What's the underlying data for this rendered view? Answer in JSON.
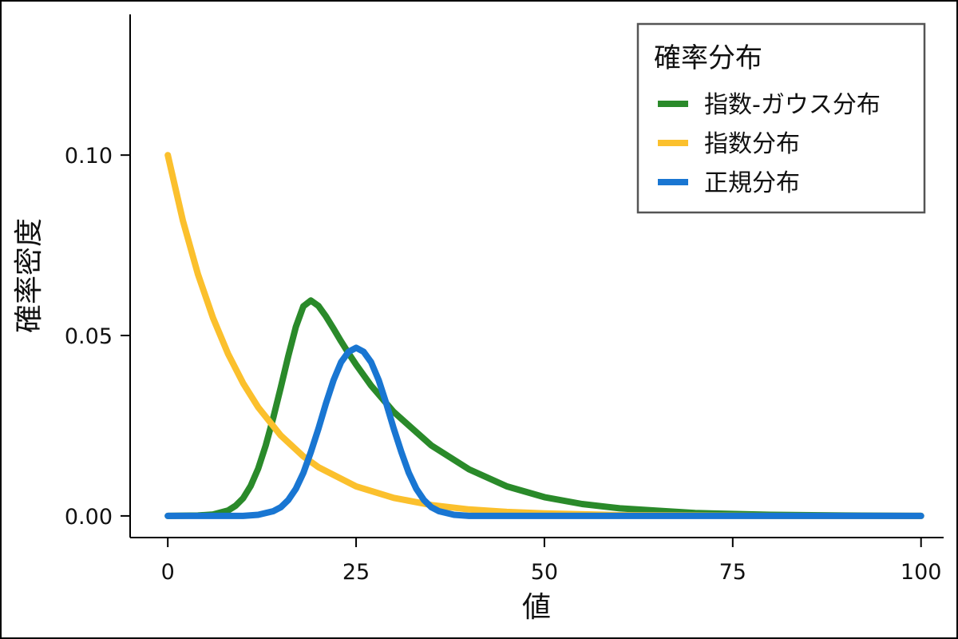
{
  "chart_data": {
    "type": "line",
    "xlabel": "値",
    "ylabel": "確率密度",
    "xlim": [
      -5,
      103
    ],
    "ylim": [
      -0.006,
      0.139
    ],
    "x_ticks": [
      {
        "value": 0,
        "label": "0"
      },
      {
        "value": 25,
        "label": "25"
      },
      {
        "value": 50,
        "label": "50"
      },
      {
        "value": 75,
        "label": "75"
      },
      {
        "value": 100,
        "label": "100"
      }
    ],
    "y_ticks": [
      {
        "value": 0,
        "label": "0.00"
      },
      {
        "value": 0.05,
        "label": "0.05"
      },
      {
        "value": 0.1,
        "label": "0.10"
      }
    ],
    "grid": false,
    "legend": {
      "title": "確率分布",
      "position": "top-right",
      "entries": [
        "指数-ガウス分布",
        "指数分布",
        "正規分布"
      ]
    },
    "series": [
      {
        "name": "指数-ガウス分布",
        "color": "#2a8a2a",
        "x": [
          0,
          4,
          6,
          8,
          9,
          10,
          11,
          12,
          13,
          14,
          15,
          16,
          17,
          18,
          19,
          20,
          21,
          22,
          23,
          24,
          25,
          27,
          30,
          35,
          40,
          45,
          50,
          55,
          60,
          70,
          80,
          90,
          100
        ],
        "y": [
          0.0,
          0.0001,
          0.0004,
          0.0015,
          0.0028,
          0.0049,
          0.0083,
          0.0131,
          0.0195,
          0.0272,
          0.0356,
          0.0443,
          0.0524,
          0.0581,
          0.0597,
          0.0582,
          0.0553,
          0.0519,
          0.0484,
          0.0451,
          0.0419,
          0.0361,
          0.0288,
          0.0195,
          0.0129,
          0.0082,
          0.0052,
          0.0033,
          0.0021,
          0.0008,
          0.0003,
          0.0001,
          0.0
        ]
      },
      {
        "name": "指数分布",
        "color": "#fbc02d",
        "x": [
          0,
          2,
          4,
          6,
          8,
          10,
          12,
          15,
          18,
          20,
          25,
          30,
          35,
          40,
          45,
          50,
          60,
          70,
          80,
          90,
          100
        ],
        "y": [
          0.1,
          0.0819,
          0.067,
          0.0549,
          0.0449,
          0.0368,
          0.0301,
          0.0223,
          0.0165,
          0.0135,
          0.0082,
          0.005,
          0.003,
          0.0018,
          0.0011,
          0.0007,
          0.0002,
          0.0001,
          0.0,
          0.0,
          0.0
        ]
      },
      {
        "name": "正規分布",
        "color": "#1976d2",
        "x": [
          0,
          10,
          12,
          14,
          15,
          16,
          17,
          18,
          19,
          20,
          21,
          22,
          23,
          24,
          25,
          26,
          27,
          28,
          29,
          30,
          31,
          32,
          33,
          34,
          35,
          36,
          38,
          40,
          50,
          75,
          100
        ],
        "y": [
          0.0,
          0.0,
          0.0003,
          0.0013,
          0.0024,
          0.0044,
          0.0075,
          0.0119,
          0.0177,
          0.0242,
          0.0312,
          0.0376,
          0.0426,
          0.0455,
          0.0466,
          0.0455,
          0.0426,
          0.0376,
          0.0312,
          0.0242,
          0.0177,
          0.0119,
          0.0075,
          0.0044,
          0.0024,
          0.0013,
          0.0003,
          0.0,
          0.0,
          0.0,
          0.0
        ]
      }
    ]
  }
}
